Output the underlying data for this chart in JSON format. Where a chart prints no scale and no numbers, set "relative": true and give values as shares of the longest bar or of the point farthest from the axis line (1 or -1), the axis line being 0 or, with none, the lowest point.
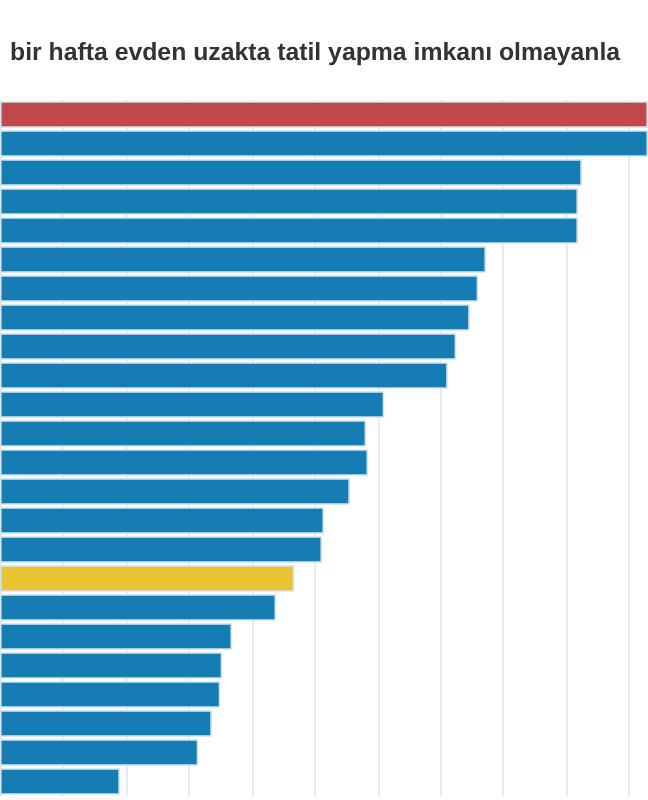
{
  "chart_data": {
    "type": "bar",
    "orientation": "horizontal",
    "relative": true,
    "title": "bir hafta evden uzakta tatil yapma imkanı olmayanla",
    "categories": [
      null,
      null,
      null,
      null,
      null,
      null,
      null,
      null,
      null,
      null,
      null,
      null,
      null,
      null,
      null,
      null,
      null,
      null,
      null,
      null,
      null,
      null,
      null,
      null
    ],
    "values": [
      1,
      1,
      0.898,
      0.892,
      0.892,
      0.75,
      0.738,
      0.725,
      0.704,
      0.691,
      0.593,
      0.565,
      0.568,
      0.54,
      0.5,
      0.497,
      0.454,
      0.426,
      0.358,
      0.343,
      0.34,
      0.327,
      0.306,
      0.185
    ],
    "colors": [
      "#c0474a",
      "#167db4",
      "#167db4",
      "#167db4",
      "#167db4",
      "#167db4",
      "#167db4",
      "#167db4",
      "#167db4",
      "#167db4",
      "#167db4",
      "#167db4",
      "#167db4",
      "#167db4",
      "#167db4",
      "#167db4",
      "#e8c431",
      "#167db4",
      "#167db4",
      "#167db4",
      "#167db4",
      "#167db4",
      "#167db4",
      "#167db4"
    ],
    "grid": "x"
  }
}
